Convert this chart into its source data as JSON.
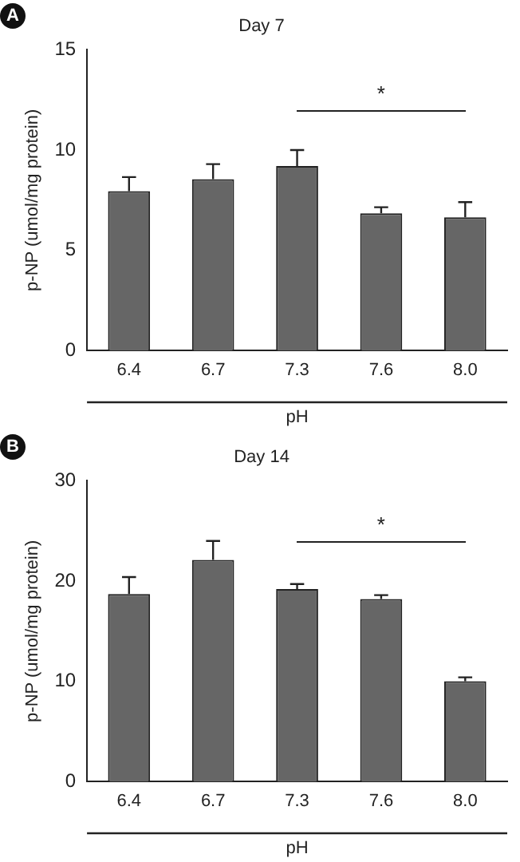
{
  "chart_data": [
    {
      "type": "bar",
      "title": "Day 7",
      "xlabel": "pH",
      "ylabel": "p-NP (umol/mg protein)",
      "categories": [
        "6.4",
        "6.7",
        "7.3",
        "7.6",
        "8.0"
      ],
      "values": [
        7.95,
        8.55,
        9.2,
        6.85,
        6.65
      ],
      "errors": [
        [
          7.95,
          8.65
        ],
        [
          8.55,
          9.3
        ],
        [
          9.2,
          10.0
        ],
        [
          6.85,
          7.15
        ],
        [
          6.65,
          7.4
        ]
      ],
      "color": "#666666",
      "ylim": [
        0,
        15
      ],
      "yticks": [
        0,
        5,
        10,
        15
      ],
      "grid": false,
      "annotations": [
        "A",
        "*"
      ]
    },
    {
      "type": "bar",
      "title": "Day 14",
      "xlabel": "pH",
      "ylabel": "p-NP (umol/mg protein)",
      "categories": [
        "6.4",
        "6.7",
        "7.3",
        "7.6",
        "8.0"
      ],
      "values": [
        18.7,
        22.1,
        19.2,
        18.2,
        10.0
      ],
      "errors": [
        [
          18.7,
          20.4
        ],
        [
          22.1,
          24.0
        ],
        [
          19.2,
          19.7
        ],
        [
          18.2,
          18.6
        ],
        [
          10.0,
          10.4
        ]
      ],
      "color": "#666666",
      "ylim": [
        0,
        30
      ],
      "yticks": [
        0,
        10,
        20,
        30
      ],
      "grid": false,
      "annotations": [
        "B",
        "*"
      ]
    }
  ]
}
